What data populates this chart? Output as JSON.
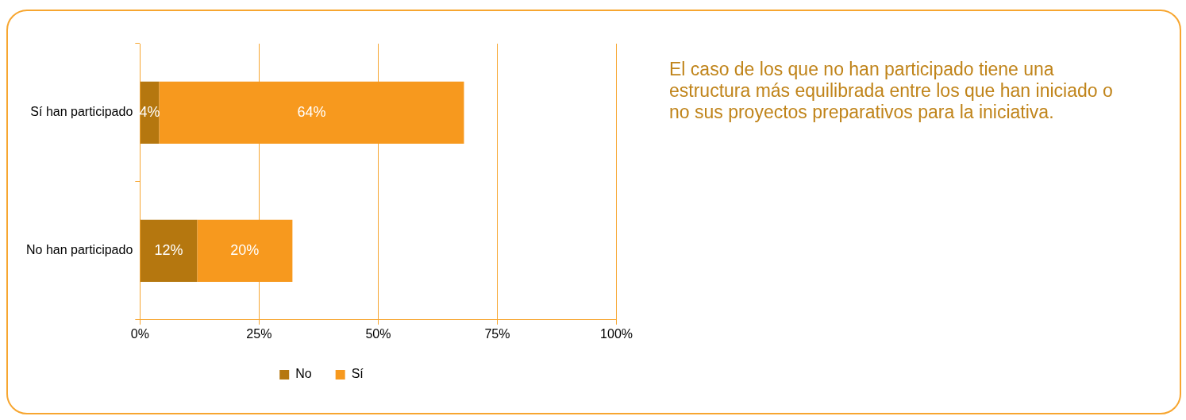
{
  "chart_data": {
    "type": "bar",
    "orientation": "horizontal",
    "stacked": true,
    "categories": [
      "Sí han participado",
      "No han participado"
    ],
    "series": [
      {
        "name": "No",
        "color": "#b5770f",
        "values": [
          4,
          12
        ],
        "value_labels": [
          "4%",
          "12%"
        ]
      },
      {
        "name": "Sí",
        "color": "#f7991e",
        "values": [
          64,
          20
        ],
        "value_labels": [
          "64%",
          "20%"
        ]
      }
    ],
    "xlim": [
      0,
      100
    ],
    "xticks": [
      {
        "value": 0,
        "label": "0%"
      },
      {
        "value": 25,
        "label": "25%"
      },
      {
        "value": 50,
        "label": "50%"
      },
      {
        "value": 75,
        "label": "75%"
      },
      {
        "value": 100,
        "label": "100%"
      }
    ],
    "grid": "x",
    "legend": "bottom",
    "annotations": [
      "El caso de los que no han participado tiene una estructura más equilibrada entre los que han iniciado o no sus proyectos preparativos para la iniciativa."
    ]
  }
}
